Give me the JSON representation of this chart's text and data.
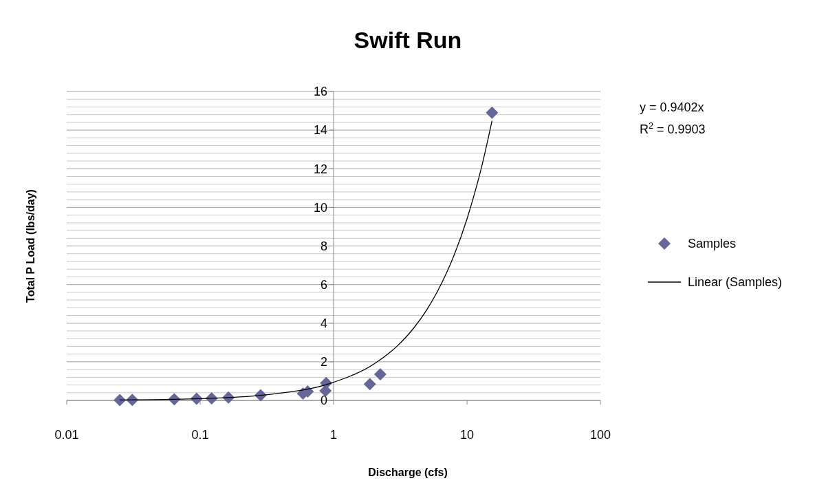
{
  "chart_data": {
    "type": "scatter",
    "title": "Swift Run",
    "xlabel": "Discharge (cfs)",
    "ylabel": "Total P Load (lbs/day)",
    "log": "x",
    "xlim": [
      0.01,
      100
    ],
    "xticks": [
      0.01,
      0.1,
      1,
      10,
      100
    ],
    "ylim": [
      0,
      16
    ],
    "yticks": [
      0,
      {
        "value": 0.4,
        "label": null
      },
      {
        "value": 0.8,
        "label": null
      },
      {
        "value": 1.2,
        "label": null
      },
      {
        "value": 1.6,
        "label": null
      },
      2,
      {
        "value": 2.4,
        "label": null
      },
      {
        "value": 2.8,
        "label": null
      },
      {
        "value": 3.2,
        "label": null
      },
      {
        "value": 3.6,
        "label": null
      },
      4,
      {
        "value": 4.4,
        "label": null
      },
      {
        "value": 4.8,
        "label": null
      },
      {
        "value": 5.2,
        "label": null
      },
      {
        "value": 5.6,
        "label": null
      },
      6,
      {
        "value": 6.4,
        "label": null
      },
      {
        "value": 6.8,
        "label": null
      },
      {
        "value": 7.2,
        "label": null
      },
      {
        "value": 7.6,
        "label": null
      },
      8,
      {
        "value": 8.4,
        "label": null
      },
      {
        "value": 8.8,
        "label": null
      },
      {
        "value": 9.2,
        "label": null
      },
      {
        "value": 9.6,
        "label": null
      },
      10,
      {
        "value": 10.4,
        "label": null
      },
      {
        "value": 10.8,
        "label": null
      },
      {
        "value": 11.2,
        "label": null
      },
      {
        "value": 11.6,
        "label": null
      },
      12,
      {
        "value": 12.4,
        "label": null
      },
      {
        "value": 12.8,
        "label": null
      },
      {
        "value": 13.2,
        "label": null
      },
      {
        "value": 13.6,
        "label": null
      },
      14,
      {
        "value": 14.4,
        "label": null
      },
      {
        "value": 14.8,
        "label": null
      },
      {
        "value": 15.2,
        "label": null
      },
      {
        "value": 15.6,
        "label": null
      },
      16
    ],
    "grid": "y",
    "legend": "right",
    "annotations": [
      "y = 0.9402x",
      "R$^{2}$ = 0.9903"
    ],
    "series": [
      {
        "name": "Samples",
        "marker": "diamond",
        "color": "#666699",
        "x": [
          0.025,
          0.031,
          0.064,
          0.094,
          0.122,
          0.163,
          0.284,
          0.59,
          0.64,
          0.87,
          0.88,
          1.87,
          2.24,
          15.4
        ],
        "values": [
          0.02,
          0.03,
          0.06,
          0.09,
          0.11,
          0.15,
          0.27,
          0.36,
          0.46,
          0.5,
          0.9,
          0.85,
          1.35,
          14.9
        ]
      },
      {
        "name": "Linear (Samples)",
        "type": "line",
        "color": "#000000",
        "x": [
          0.025,
          0.1,
          0.3,
          1,
          2,
          3,
          4,
          5,
          6,
          7,
          8,
          10,
          12,
          13,
          15.4
        ],
        "values": [
          0.02,
          0.09,
          0.28,
          0.94,
          1.88,
          2.82,
          3.76,
          4.7,
          5.64,
          6.58,
          7.52,
          9.4,
          11.28,
          12.22,
          14.48
        ]
      }
    ]
  }
}
